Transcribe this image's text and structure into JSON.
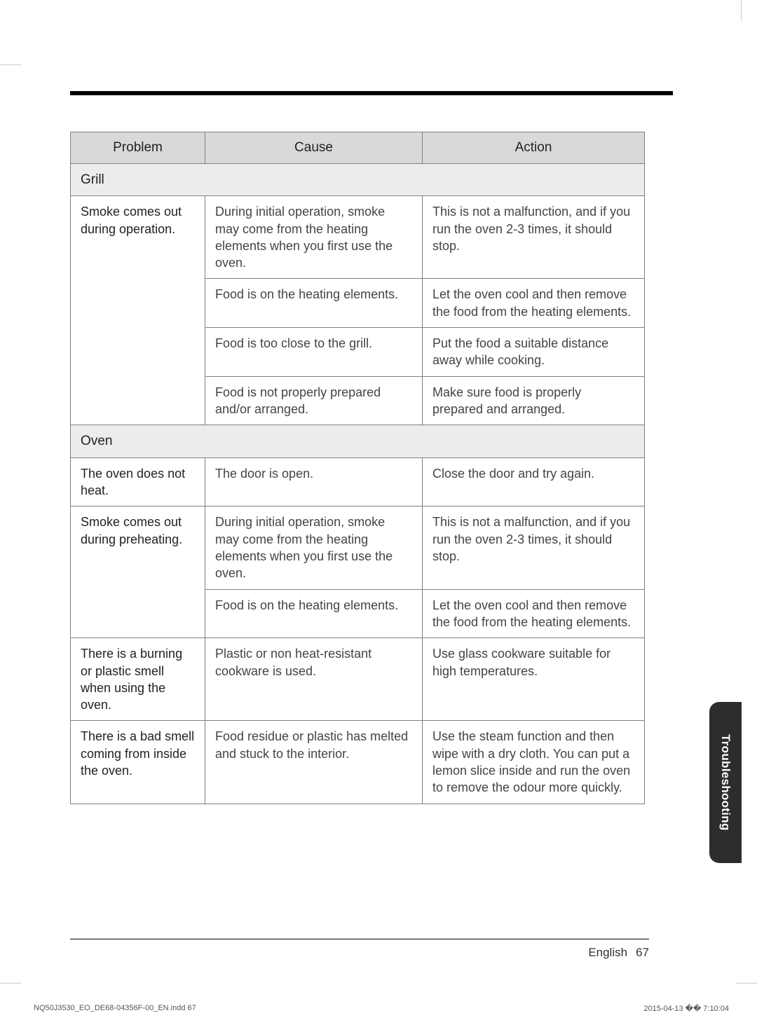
{
  "table": {
    "headers": {
      "problem": "Problem",
      "cause": "Cause",
      "action": "Action"
    },
    "sections": [
      {
        "title": "Grill",
        "rows": [
          {
            "problem": "Smoke comes out during operation.",
            "entries": [
              {
                "cause": "During initial operation, smoke may come from the heating elements when you first use the oven.",
                "action": "This is not a malfunction, and if you run the oven 2-3 times, it should stop."
              },
              {
                "cause": "Food is on the heating elements.",
                "action": "Let the oven cool and then remove the food from the heating elements."
              },
              {
                "cause": "Food is too close to the grill.",
                "action": "Put the food a suitable distance away while cooking."
              },
              {
                "cause": "Food is not properly prepared and/or arranged.",
                "action": "Make sure food is properly prepared and arranged."
              }
            ]
          }
        ]
      },
      {
        "title": "Oven",
        "rows": [
          {
            "problem": "The oven does not heat.",
            "entries": [
              {
                "cause": "The door is open.",
                "action": "Close the door and try again."
              }
            ]
          },
          {
            "problem": "Smoke comes out during preheating.",
            "entries": [
              {
                "cause": "During initial operation, smoke may come from the heating elements when you first use the oven.",
                "action": "This is not a malfunction, and if you run the oven 2-3 times, it should stop."
              },
              {
                "cause": "Food is on the heating elements.",
                "action": "Let the oven cool and then remove the food from the heating elements."
              }
            ]
          },
          {
            "problem": "There is a burning or plastic smell when using the oven.",
            "entries": [
              {
                "cause": "Plastic or non heat-resistant cookware is used.",
                "action": "Use glass cookware suitable for high temperatures."
              }
            ]
          },
          {
            "problem": "There is a bad smell coming from inside the oven.",
            "entries": [
              {
                "cause": "Food residue or plastic has melted and stuck to the interior.",
                "action": "Use the steam function and then wipe with a dry cloth.\nYou can put a lemon slice inside and run the oven to remove the odour more quickly."
              }
            ]
          }
        ]
      }
    ]
  },
  "sideTab": "Troubleshooting",
  "footer": {
    "language": "English",
    "page": "67"
  },
  "printFooter": {
    "left": "NQ50J3530_EO_DE68-04356F-00_EN.indd   67",
    "right": "2015-04-13   �� 7:10:04"
  },
  "colors": {
    "header_bg": "#d9d9d9",
    "section_bg": "#ececec",
    "border": "#808080",
    "tab_bg": "#2d2d2d",
    "text": "#3a3a3a"
  }
}
